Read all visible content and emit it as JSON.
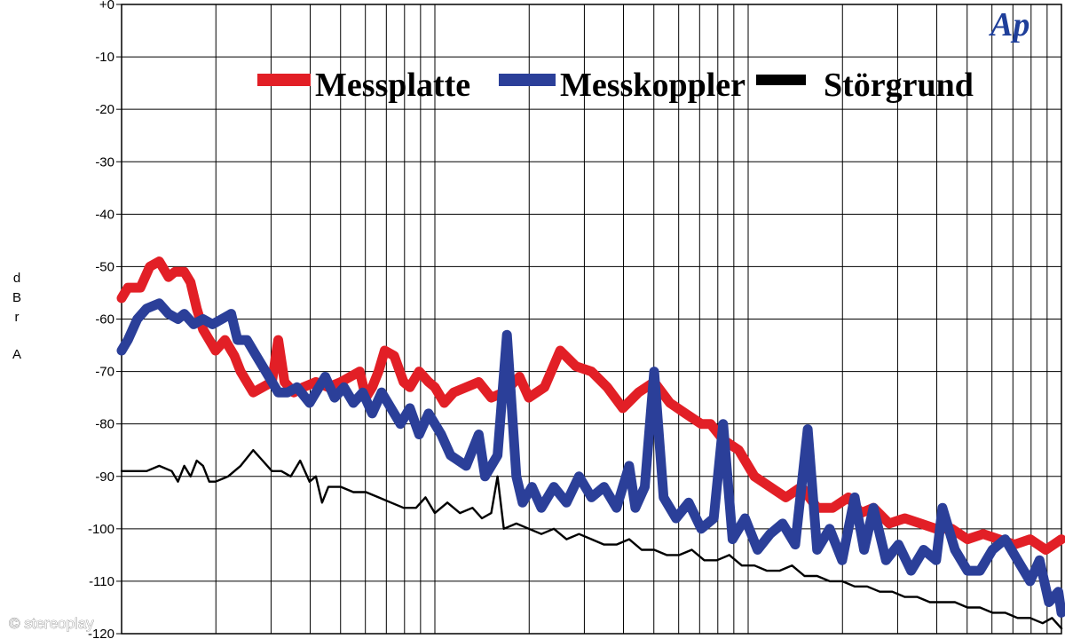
{
  "chart_data": {
    "type": "line",
    "title": "",
    "xlabel": "",
    "ylabel": "dBr A",
    "ylabel_chars": [
      "d",
      "B",
      "r",
      "A"
    ],
    "ylim": [
      -120,
      0
    ],
    "y_ticks": [
      "+0",
      "-10",
      "-20",
      "-30",
      "-40",
      "-50",
      "-60",
      "-70",
      "-80",
      "-90",
      "-100",
      "-110",
      "-120"
    ],
    "x_scale": "log",
    "x_range_decades": [
      0,
      3
    ],
    "grid": true,
    "legend_position": "top",
    "series": [
      {
        "name": "Messplatte",
        "color": "#e21f26",
        "points": [
          [
            0,
            -56
          ],
          [
            0.02,
            -54
          ],
          [
            0.06,
            -54
          ],
          [
            0.09,
            -50
          ],
          [
            0.12,
            -49
          ],
          [
            0.15,
            -52
          ],
          [
            0.17,
            -51
          ],
          [
            0.2,
            -51
          ],
          [
            0.22,
            -53
          ],
          [
            0.24,
            -58
          ],
          [
            0.26,
            -62
          ],
          [
            0.28,
            -64
          ],
          [
            0.3,
            -66
          ],
          [
            0.33,
            -64
          ],
          [
            0.36,
            -67
          ],
          [
            0.38,
            -70
          ],
          [
            0.42,
            -74
          ],
          [
            0.45,
            -73
          ],
          [
            0.48,
            -72
          ],
          [
            0.5,
            -64
          ],
          [
            0.52,
            -72
          ],
          [
            0.55,
            -74
          ],
          [
            0.58,
            -73
          ],
          [
            0.62,
            -72
          ],
          [
            0.66,
            -73
          ],
          [
            0.7,
            -72
          ],
          [
            0.73,
            -71
          ],
          [
            0.76,
            -70
          ],
          [
            0.78,
            -75
          ],
          [
            0.8,
            -73
          ],
          [
            0.82,
            -70
          ],
          [
            0.84,
            -66
          ],
          [
            0.87,
            -67
          ],
          [
            0.9,
            -72
          ],
          [
            0.92,
            -73
          ],
          [
            0.95,
            -70
          ],
          [
            0.98,
            -72
          ],
          [
            1.0,
            -73
          ],
          [
            1.03,
            -76
          ],
          [
            1.06,
            -74
          ],
          [
            1.1,
            -73
          ],
          [
            1.14,
            -72
          ],
          [
            1.18,
            -75
          ],
          [
            1.22,
            -74
          ],
          [
            1.27,
            -71
          ],
          [
            1.3,
            -75
          ],
          [
            1.35,
            -73
          ],
          [
            1.4,
            -66
          ],
          [
            1.45,
            -69
          ],
          [
            1.5,
            -70
          ],
          [
            1.55,
            -73
          ],
          [
            1.6,
            -77
          ],
          [
            1.65,
            -74
          ],
          [
            1.7,
            -72
          ],
          [
            1.75,
            -76
          ],
          [
            1.8,
            -78
          ],
          [
            1.85,
            -80
          ],
          [
            1.88,
            -80
          ],
          [
            1.92,
            -83
          ],
          [
            1.97,
            -85
          ],
          [
            2.02,
            -90
          ],
          [
            2.07,
            -92
          ],
          [
            2.12,
            -94
          ],
          [
            2.17,
            -92
          ],
          [
            2.22,
            -96
          ],
          [
            2.27,
            -96
          ],
          [
            2.32,
            -94
          ],
          [
            2.36,
            -97
          ],
          [
            2.4,
            -96
          ],
          [
            2.45,
            -99
          ],
          [
            2.5,
            -98
          ],
          [
            2.55,
            -99
          ],
          [
            2.6,
            -100
          ],
          [
            2.65,
            -100
          ],
          [
            2.7,
            -102
          ],
          [
            2.75,
            -101
          ],
          [
            2.8,
            -102
          ],
          [
            2.85,
            -103
          ],
          [
            2.9,
            -102
          ],
          [
            2.95,
            -104
          ],
          [
            3.0,
            -102
          ]
        ]
      },
      {
        "name": "Messkoppler",
        "color": "#2b3f99",
        "points": [
          [
            0,
            -66
          ],
          [
            0.02,
            -64
          ],
          [
            0.05,
            -60
          ],
          [
            0.08,
            -58
          ],
          [
            0.12,
            -57
          ],
          [
            0.15,
            -59
          ],
          [
            0.18,
            -60
          ],
          [
            0.2,
            -59
          ],
          [
            0.23,
            -61
          ],
          [
            0.26,
            -60
          ],
          [
            0.29,
            -61
          ],
          [
            0.32,
            -60
          ],
          [
            0.35,
            -59
          ],
          [
            0.37,
            -64
          ],
          [
            0.4,
            -64
          ],
          [
            0.43,
            -67
          ],
          [
            0.46,
            -70
          ],
          [
            0.5,
            -74
          ],
          [
            0.53,
            -74
          ],
          [
            0.56,
            -73
          ],
          [
            0.6,
            -76
          ],
          [
            0.63,
            -73
          ],
          [
            0.65,
            -71
          ],
          [
            0.68,
            -75
          ],
          [
            0.71,
            -73
          ],
          [
            0.74,
            -76
          ],
          [
            0.77,
            -74
          ],
          [
            0.8,
            -78
          ],
          [
            0.83,
            -74
          ],
          [
            0.86,
            -77
          ],
          [
            0.89,
            -80
          ],
          [
            0.92,
            -77
          ],
          [
            0.95,
            -82
          ],
          [
            0.98,
            -78
          ],
          [
            1.02,
            -82
          ],
          [
            1.05,
            -86
          ],
          [
            1.1,
            -88
          ],
          [
            1.14,
            -82
          ],
          [
            1.16,
            -90
          ],
          [
            1.2,
            -86
          ],
          [
            1.23,
            -63
          ],
          [
            1.26,
            -90
          ],
          [
            1.28,
            -95
          ],
          [
            1.31,
            -92
          ],
          [
            1.34,
            -96
          ],
          [
            1.38,
            -92
          ],
          [
            1.42,
            -95
          ],
          [
            1.46,
            -90
          ],
          [
            1.5,
            -94
          ],
          [
            1.54,
            -92
          ],
          [
            1.58,
            -96
          ],
          [
            1.62,
            -88
          ],
          [
            1.64,
            -96
          ],
          [
            1.67,
            -92
          ],
          [
            1.7,
            -70
          ],
          [
            1.73,
            -94
          ],
          [
            1.77,
            -98
          ],
          [
            1.81,
            -95
          ],
          [
            1.85,
            -100
          ],
          [
            1.89,
            -98
          ],
          [
            1.92,
            -80
          ],
          [
            1.95,
            -102
          ],
          [
            1.99,
            -98
          ],
          [
            2.03,
            -104
          ],
          [
            2.07,
            -101
          ],
          [
            2.11,
            -99
          ],
          [
            2.15,
            -103
          ],
          [
            2.19,
            -81
          ],
          [
            2.22,
            -104
          ],
          [
            2.26,
            -100
          ],
          [
            2.3,
            -106
          ],
          [
            2.34,
            -94
          ],
          [
            2.37,
            -104
          ],
          [
            2.4,
            -96
          ],
          [
            2.44,
            -106
          ],
          [
            2.48,
            -103
          ],
          [
            2.52,
            -108
          ],
          [
            2.56,
            -104
          ],
          [
            2.6,
            -106
          ],
          [
            2.62,
            -96
          ],
          [
            2.66,
            -104
          ],
          [
            2.7,
            -108
          ],
          [
            2.74,
            -108
          ],
          [
            2.78,
            -104
          ],
          [
            2.82,
            -102
          ],
          [
            2.86,
            -106
          ],
          [
            2.9,
            -110
          ],
          [
            2.93,
            -106
          ],
          [
            2.96,
            -114
          ],
          [
            2.99,
            -112
          ],
          [
            3.0,
            -116
          ]
        ]
      },
      {
        "name": "Störgrund",
        "color": "#000000",
        "points": [
          [
            0,
            -89
          ],
          [
            0.04,
            -89
          ],
          [
            0.08,
            -89
          ],
          [
            0.12,
            -88
          ],
          [
            0.16,
            -89
          ],
          [
            0.18,
            -91
          ],
          [
            0.2,
            -88
          ],
          [
            0.22,
            -90
          ],
          [
            0.24,
            -87
          ],
          [
            0.26,
            -88
          ],
          [
            0.28,
            -91
          ],
          [
            0.3,
            -91
          ],
          [
            0.34,
            -90
          ],
          [
            0.38,
            -88
          ],
          [
            0.42,
            -85
          ],
          [
            0.45,
            -87
          ],
          [
            0.48,
            -89
          ],
          [
            0.51,
            -89
          ],
          [
            0.54,
            -90
          ],
          [
            0.57,
            -87
          ],
          [
            0.6,
            -91
          ],
          [
            0.62,
            -90
          ],
          [
            0.64,
            -95
          ],
          [
            0.66,
            -92
          ],
          [
            0.7,
            -92
          ],
          [
            0.74,
            -93
          ],
          [
            0.78,
            -93
          ],
          [
            0.82,
            -94
          ],
          [
            0.86,
            -95
          ],
          [
            0.9,
            -96
          ],
          [
            0.94,
            -96
          ],
          [
            0.97,
            -94
          ],
          [
            1.0,
            -97
          ],
          [
            1.04,
            -95
          ],
          [
            1.08,
            -97
          ],
          [
            1.12,
            -96
          ],
          [
            1.15,
            -98
          ],
          [
            1.18,
            -97
          ],
          [
            1.2,
            -90
          ],
          [
            1.22,
            -100
          ],
          [
            1.26,
            -99
          ],
          [
            1.3,
            -100
          ],
          [
            1.34,
            -101
          ],
          [
            1.38,
            -100
          ],
          [
            1.42,
            -102
          ],
          [
            1.46,
            -101
          ],
          [
            1.5,
            -102
          ],
          [
            1.54,
            -103
          ],
          [
            1.58,
            -103
          ],
          [
            1.62,
            -102
          ],
          [
            1.66,
            -104
          ],
          [
            1.7,
            -104
          ],
          [
            1.74,
            -105
          ],
          [
            1.78,
            -105
          ],
          [
            1.82,
            -104
          ],
          [
            1.86,
            -106
          ],
          [
            1.9,
            -106
          ],
          [
            1.94,
            -105
          ],
          [
            1.98,
            -107
          ],
          [
            2.02,
            -107
          ],
          [
            2.06,
            -108
          ],
          [
            2.1,
            -108
          ],
          [
            2.14,
            -107
          ],
          [
            2.18,
            -109
          ],
          [
            2.22,
            -109
          ],
          [
            2.26,
            -110
          ],
          [
            2.3,
            -110
          ],
          [
            2.34,
            -111
          ],
          [
            2.38,
            -111
          ],
          [
            2.42,
            -112
          ],
          [
            2.46,
            -112
          ],
          [
            2.5,
            -113
          ],
          [
            2.54,
            -113
          ],
          [
            2.58,
            -114
          ],
          [
            2.62,
            -114
          ],
          [
            2.66,
            -114
          ],
          [
            2.7,
            -115
          ],
          [
            2.74,
            -115
          ],
          [
            2.78,
            -116
          ],
          [
            2.82,
            -116
          ],
          [
            2.86,
            -117
          ],
          [
            2.9,
            -117
          ],
          [
            2.94,
            -118
          ],
          [
            2.97,
            -117
          ],
          [
            3.0,
            -119
          ]
        ]
      }
    ]
  },
  "logo_text": "Ap",
  "watermark": "© stereoplay"
}
